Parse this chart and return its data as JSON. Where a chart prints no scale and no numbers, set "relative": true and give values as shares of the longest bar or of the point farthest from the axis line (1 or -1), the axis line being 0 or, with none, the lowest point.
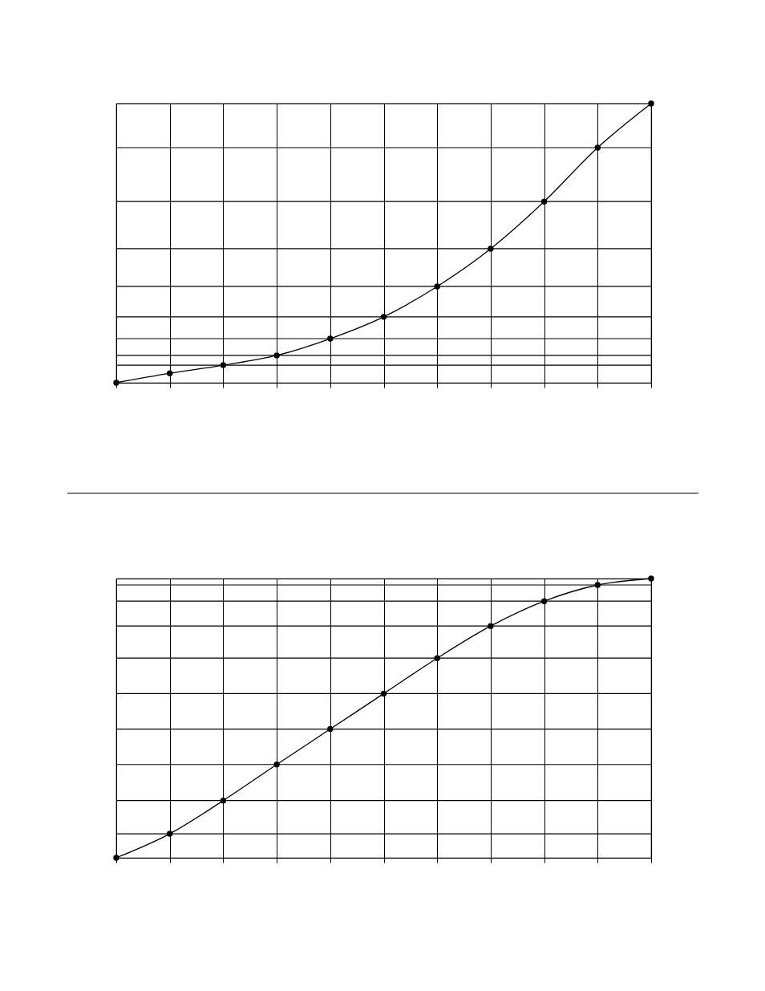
{
  "chart_data": [
    {
      "type": "line",
      "categories": [
        null,
        null,
        null,
        null,
        null,
        null,
        null,
        null,
        null,
        null,
        null
      ],
      "relative": true,
      "grid": "x",
      "marker": "circle",
      "tick_labels": false,
      "series": [
        {
          "color": "#000000",
          "values": [
            0,
            0.034,
            0.063,
            0.098,
            0.158,
            0.236,
            0.345,
            0.48,
            0.649,
            0.842,
            1
          ]
        }
      ],
      "ref_lines": [
        {
          "axis": "y",
          "value": 0.063
        },
        {
          "axis": "y",
          "value": 0.098
        },
        {
          "axis": "y",
          "value": 0.158
        },
        {
          "axis": "y",
          "value": 0.236
        },
        {
          "axis": "y",
          "value": 0.345
        },
        {
          "axis": "y",
          "value": 0.48
        },
        {
          "axis": "y",
          "value": 0.649
        },
        {
          "axis": "y",
          "value": 0.842
        }
      ]
    },
    {
      "type": "line",
      "categories": [
        null,
        null,
        null,
        null,
        null,
        null,
        null,
        null,
        null,
        null,
        null
      ],
      "relative": true,
      "grid": "x",
      "marker": "circle",
      "tick_labels": false,
      "series": [
        {
          "color": "#000000",
          "values": [
            0,
            0.086,
            0.205,
            0.334,
            0.461,
            0.588,
            0.715,
            0.83,
            0.919,
            0.977,
            1
          ]
        }
      ],
      "ref_lines": [
        {
          "axis": "y",
          "value": 0.086
        },
        {
          "axis": "y",
          "value": 0.205
        },
        {
          "axis": "y",
          "value": 0.334
        },
        {
          "axis": "y",
          "value": 0.461
        },
        {
          "axis": "y",
          "value": 0.588
        },
        {
          "axis": "y",
          "value": 0.715
        },
        {
          "axis": "y",
          "value": 0.83
        },
        {
          "axis": "y",
          "value": 0.919
        },
        {
          "axis": "y",
          "value": 0.977
        }
      ]
    }
  ]
}
